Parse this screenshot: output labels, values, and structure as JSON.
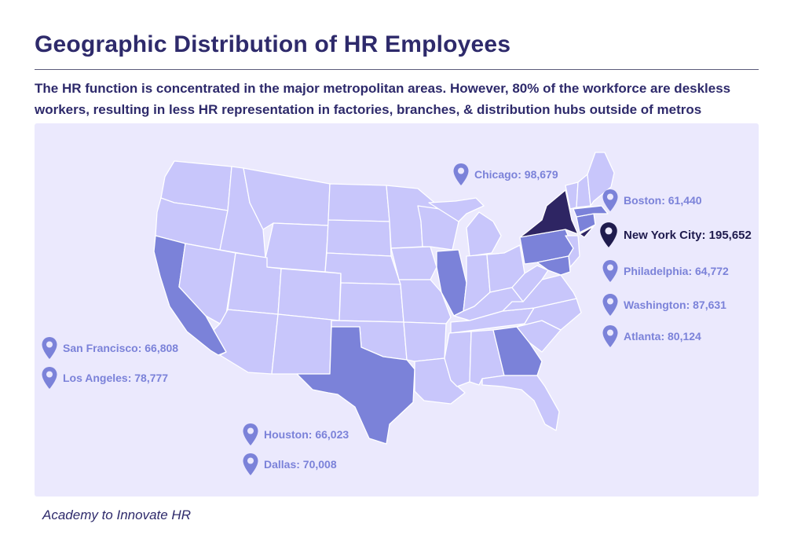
{
  "header": {
    "title": "Geographic Distribution of HR Employees",
    "subtitle": "The HR function is concentrated in the major metropolitan areas. However, 80% of the workforce are deskless workers, resulting in less HR representation in factories, branches, & distribution hubs outside of metros"
  },
  "colors": {
    "background_panel": "#ebe9fd",
    "state_default": "#c8c6fb",
    "state_highlight": "#7b82d9",
    "state_top": "#2e2563",
    "text": "#2e2a6b"
  },
  "highlighted_states": {
    "medium": [
      "California",
      "Texas",
      "Illinois",
      "Georgia",
      "Pennsylvania",
      "Massachusetts",
      "Maryland"
    ],
    "top": [
      "New York"
    ]
  },
  "cities": [
    {
      "name": "Chicago",
      "value": "98,679",
      "label": "Chicago: 98,679"
    },
    {
      "name": "Boston",
      "value": "61,440",
      "label": "Boston: 61,440"
    },
    {
      "name": "New York City",
      "value": "195,652",
      "label": "New York City: 195,652"
    },
    {
      "name": "Philadelphia",
      "value": "64,772",
      "label": "Philadelphia: 64,772"
    },
    {
      "name": "Washington",
      "value": "87,631",
      "label": "Washington: 87,631"
    },
    {
      "name": "Atlanta",
      "value": "80,124",
      "label": "Atlanta: 80,124"
    },
    {
      "name": "San Francisco",
      "value": "66,808",
      "label": "San Francisco: 66,808"
    },
    {
      "name": "Los Angeles",
      "value": "78,777",
      "label": "Los Angeles: 78,777"
    },
    {
      "name": "Houston",
      "value": "66,023",
      "label": "Houston: 66,023"
    },
    {
      "name": "Dallas",
      "value": "70,008",
      "label": "Dallas: 70,008"
    }
  ],
  "footer": {
    "source": "Academy to Innovate HR"
  }
}
